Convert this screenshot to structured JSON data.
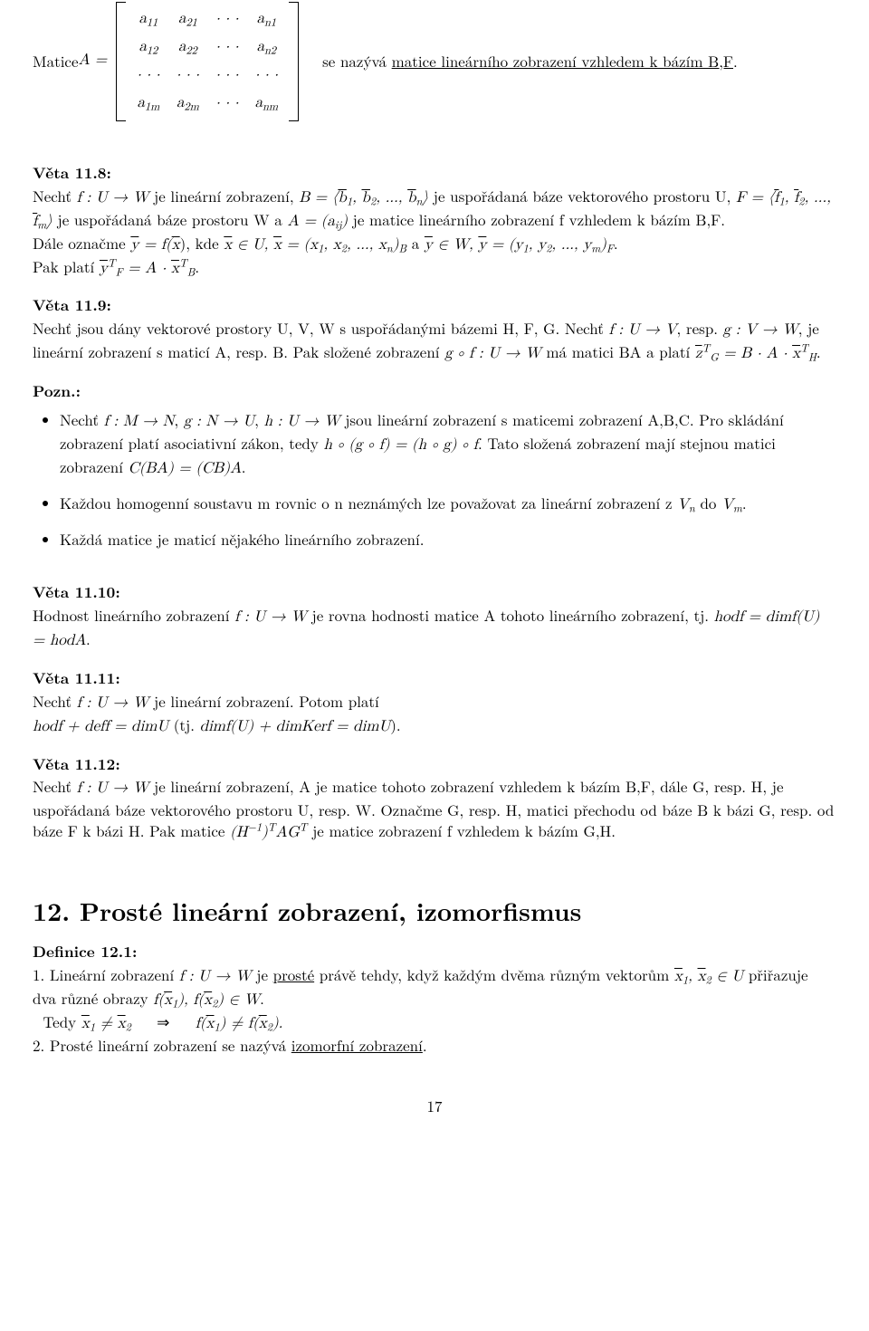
{
  "matrix": {
    "lead": "Matice ",
    "A_eq": "A =",
    "cells": {
      "r1c1": "a",
      "r1c1i": "11",
      "r1c2": "a",
      "r1c2i": "21",
      "r1c3": "· · ·",
      "r1c4": "a",
      "r1c4i": "n1",
      "r2c1": "a",
      "r2c1i": "12",
      "r2c2": "a",
      "r2c2i": "22",
      "r2c3": "· · ·",
      "r2c4": "a",
      "r2c4i": "n2",
      "r3c1": "· · ·",
      "r3c2": "· · ·",
      "r3c3": "· · ·",
      "r3c4": "· · ·",
      "r4c1": "a",
      "r4c1i": "1m",
      "r4c2": "a",
      "r4c2i": "2m",
      "r4c3": "· · ·",
      "r4c4": "a",
      "r4c4i": "nm"
    },
    "after1": " se nazývá ",
    "after_underline": "matice lineárního zobrazení vzhledem k bázím B,F",
    "after2": "."
  },
  "v118_h": "Věta 11.8:",
  "v118_1a": "Nechť ",
  "v118_1b": "f : U → W",
  "v118_1c": " je lineární zobrazení, ",
  "v118_1d": "B = ⟨",
  "v118_1e": "b",
  "v118_1e1": "1",
  "v118_1f": ", ",
  "v118_1g": "b",
  "v118_1g1": "2",
  "v118_1h": ", ..., ",
  "v118_1i": "b",
  "v118_1i1": "n",
  "v118_1j": "⟩",
  "v118_1k": " je uspořádaná báze vektorového prostoru U, ",
  "v118_1l": "F = ⟨",
  "v118_1m": "f",
  "v118_1m1": "1",
  "v118_1n": ", ",
  "v118_1o": "f",
  "v118_1o1": "2",
  "v118_1p": ", ..., ",
  "v118_1q": "f",
  "v118_1q1": "m",
  "v118_1r": "⟩",
  "v118_1s": " je uspořádaná báze prostoru W a ",
  "v118_1t": "A = (a",
  "v118_1t1": "ij",
  "v118_1u": ")",
  "v118_1v": " je matice lineárního zobrazení f vzhledem k bázím B,F.",
  "v118_2a": "Dále označme ",
  "v118_2b": "y",
  "v118_2c": " = f(",
  "v118_2d": "x",
  "v118_2e": "), kde ",
  "v118_2f": "x",
  "v118_2g": " ∈ U, ",
  "v118_2h": "x",
  "v118_2i": " = (x",
  "v118_2i1": "1",
  "v118_2j": ", x",
  "v118_2j1": "2",
  "v118_2k": ", ..., x",
  "v118_2k1": "n",
  "v118_2l": ")",
  "v118_2l1": "B",
  "v118_2m": " a ",
  "v118_2n": "y",
  "v118_2o": " ∈ W, ",
  "v118_2p": "y",
  "v118_2q": " = (y",
  "v118_2q1": "1",
  "v118_2r": ", y",
  "v118_2r1": "2",
  "v118_2s": ", ..., y",
  "v118_2s1": "m",
  "v118_2t": ")",
  "v118_2t1": "F",
  "v118_2u": ".",
  "v118_3a": "Pak platí ",
  "v118_3b": "y",
  "v118_3bs": "T",
  "v118_3bi": "F",
  "v118_3c": " = A · ",
  "v118_3d": "x",
  "v118_3ds": "T",
  "v118_3di": "B",
  "v118_3e": ".",
  "v119_h": "Věta 11.9:",
  "v119_1": "Nechť jsou dány vektorové prostory U, V, W s uspořádanými bázemi H, F, G. Nechť ",
  "v119_1m": "f : U → V",
  "v119_1b": ", resp. ",
  "v119_1c": "g : V → W",
  "v119_1d": ", je lineární zobrazení s maticí A, resp. B. Pak složené zobrazení ",
  "v119_1e": "g ∘ f : U → W",
  "v119_1f": " má matici BA a platí ",
  "v119_1g": "z",
  "v119_1gs": "T",
  "v119_1gi": "G",
  "v119_1h": " = B · A · ",
  "v119_1i": "x",
  "v119_1is": "T",
  "v119_1ii": "H",
  "v119_1j": ".",
  "pozn_h": "Pozn.:",
  "pozn_b1a": "Nechť ",
  "pozn_b1b": "f : M → N",
  "pozn_b1c": ", ",
  "pozn_b1d": "g : N → U",
  "pozn_b1e": ", ",
  "pozn_b1f": "h : U → W",
  "pozn_b1g": " jsou lineární zobrazení s maticemi zobrazení A,B,C. Pro skládání zobrazení platí asociativní zákon, tedy ",
  "pozn_b1h": "h ∘ (g ∘ f) = (h ∘ g) ∘ f",
  "pozn_b1i": ". Tato složená zobrazení mají stejnou matici zobrazení ",
  "pozn_b1j": "C(BA) = (CB)A",
  "pozn_b1k": ".",
  "pozn_b2a": "Každou homogenní soustavu m rovnic o n neznámých lze považovat za lineární zobrazení z ",
  "pozn_b2b": "V",
  "pozn_b2bi": "n",
  "pozn_b2c": " do ",
  "pozn_b2d": "V",
  "pozn_b2di": "m",
  "pozn_b2e": ".",
  "pozn_b3": "Každá matice je maticí nějakého lineárního zobrazení.",
  "v1110_h": "Věta 11.10:",
  "v1110_1a": "Hodnost lineárního zobrazení ",
  "v1110_1b": "f : U → W",
  "v1110_1c": " je rovna hodnosti matice A tohoto lineárního zobrazení, tj. ",
  "v1110_1d": "hodf = dimf(U) = hodA",
  "v1110_1e": ".",
  "v1111_h": "Věta 11.11:",
  "v1111_1a": "Nechť ",
  "v1111_1b": "f : U → W",
  "v1111_1c": " je lineární zobrazení. Potom platí",
  "v1111_2a": "hodf + deff = dimU",
  "v1111_2b": " (tj. ",
  "v1111_2c": "dimf(U) + dimKerf = dimU",
  "v1111_2d": ").",
  "v1112_h": "Věta 11.12:",
  "v1112_1a": "Nechť ",
  "v1112_1b": "f : U → W",
  "v1112_1c": " je lineární zobrazení, A je matice tohoto zobrazení vzhledem k bázím B,F, dále G, resp. H, je uspořádaná báze vektorového prostoru U, resp. W. Označme G, resp. H, matici přechodu od báze B k bázi G, resp. od báze F k bázi H. Pak matice ",
  "v1112_1d": "(H",
  "v1112_1ds": "−1",
  "v1112_1e": ")",
  "v1112_1es": "T",
  "v1112_1f": "AG",
  "v1112_1fs": "T",
  "v1112_1g": " je matice zobrazení f vzhledem k bázím G,H.",
  "sec12_h": "12. Prosté lineární zobrazení, izomorfismus",
  "d121_h": "Definice 12.1:",
  "d121_1a": "1. Lineární zobrazení ",
  "d121_1b": "f : U → W",
  "d121_1c": " je ",
  "d121_1d": "prosté",
  "d121_1e": " právě tehdy, když každým dvěma různým vektorům ",
  "d121_2a": "x",
  "d121_2a1": "1",
  "d121_2b": ", ",
  "d121_2c": "x",
  "d121_2c1": "2",
  "d121_2d": " ∈ U",
  "d121_2e": " přiřazuje dva různé obrazy ",
  "d121_2f": "f(",
  "d121_2g": "x",
  "d121_2g1": "1",
  "d121_2h": "), f(",
  "d121_2i": "x",
  "d121_2i1": "2",
  "d121_2j": ") ∈ W",
  "d121_2k": ".",
  "d121_3a": "  Tedy ",
  "d121_3b": "x",
  "d121_3b1": "1",
  "d121_3c": " ≠ ",
  "d121_3d": "x",
  "d121_3d1": "2",
  "d121_3e": "     ⇒     ",
  "d121_3f": "f(",
  "d121_3g": "x",
  "d121_3g1": "1",
  "d121_3h": ") ≠ f(",
  "d121_3i": "x",
  "d121_3i1": "2",
  "d121_3j": ").",
  "d121_4a": "2. Prosté lineární zobrazení se nazývá ",
  "d121_4b": "izomorfní zobrazení",
  "d121_4c": ".",
  "pagenum": "17"
}
